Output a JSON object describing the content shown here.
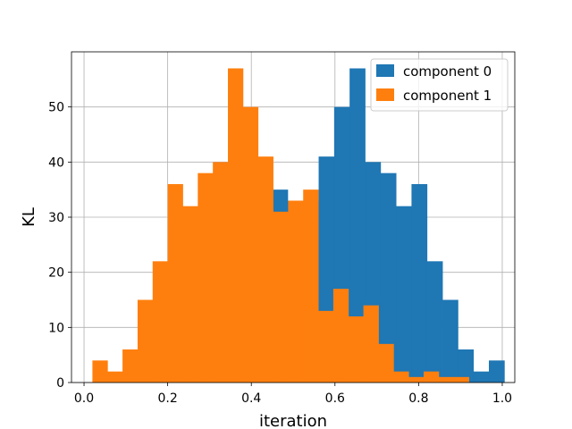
{
  "chart_data": {
    "type": "bar",
    "xlabel": "iteration",
    "ylabel": "KL",
    "xlim": [
      -0.03,
      1.03
    ],
    "ylim": [
      0,
      60
    ],
    "xticks": [
      "0.0",
      "0.2",
      "0.4",
      "0.6",
      "0.8",
      "1.0"
    ],
    "yticks": [
      "0",
      "10",
      "20",
      "30",
      "40",
      "50"
    ],
    "grid": true,
    "legend_position": "top-right",
    "series": [
      {
        "name": "component 0",
        "color": "#1f77b4",
        "bins": [
          [
            0.45,
            0.487,
            35
          ],
          [
            0.487,
            0.524,
            33
          ],
          [
            0.524,
            0.561,
            33
          ],
          [
            0.561,
            0.598,
            41
          ],
          [
            0.598,
            0.635,
            50
          ],
          [
            0.635,
            0.672,
            57
          ],
          [
            0.672,
            0.709,
            40
          ],
          [
            0.709,
            0.746,
            38
          ],
          [
            0.746,
            0.783,
            32
          ],
          [
            0.783,
            0.82,
            36
          ],
          [
            0.82,
            0.857,
            22
          ],
          [
            0.857,
            0.894,
            15
          ],
          [
            0.894,
            0.931,
            6
          ],
          [
            0.931,
            0.968,
            2
          ],
          [
            0.968,
            1.005,
            4
          ]
        ]
      },
      {
        "name": "component 1",
        "color": "#ff7f0e",
        "bins": [
          [
            0.02,
            0.056,
            4
          ],
          [
            0.056,
            0.092,
            2
          ],
          [
            0.092,
            0.128,
            6
          ],
          [
            0.128,
            0.164,
            15
          ],
          [
            0.164,
            0.2,
            22
          ],
          [
            0.2,
            0.236,
            36
          ],
          [
            0.236,
            0.272,
            32
          ],
          [
            0.272,
            0.308,
            38
          ],
          [
            0.308,
            0.344,
            40
          ],
          [
            0.344,
            0.38,
            57
          ],
          [
            0.38,
            0.416,
            50
          ],
          [
            0.416,
            0.452,
            41
          ],
          [
            0.452,
            0.488,
            31
          ],
          [
            0.488,
            0.524,
            33
          ],
          [
            0.524,
            0.56,
            35
          ],
          [
            0.56,
            0.596,
            13
          ],
          [
            0.596,
            0.632,
            17
          ],
          [
            0.632,
            0.668,
            12
          ],
          [
            0.668,
            0.704,
            14
          ],
          [
            0.704,
            0.74,
            7
          ],
          [
            0.74,
            0.776,
            2
          ],
          [
            0.776,
            0.812,
            1
          ],
          [
            0.812,
            0.848,
            2
          ],
          [
            0.848,
            0.884,
            1
          ],
          [
            0.884,
            0.92,
            1
          ]
        ]
      }
    ]
  }
}
